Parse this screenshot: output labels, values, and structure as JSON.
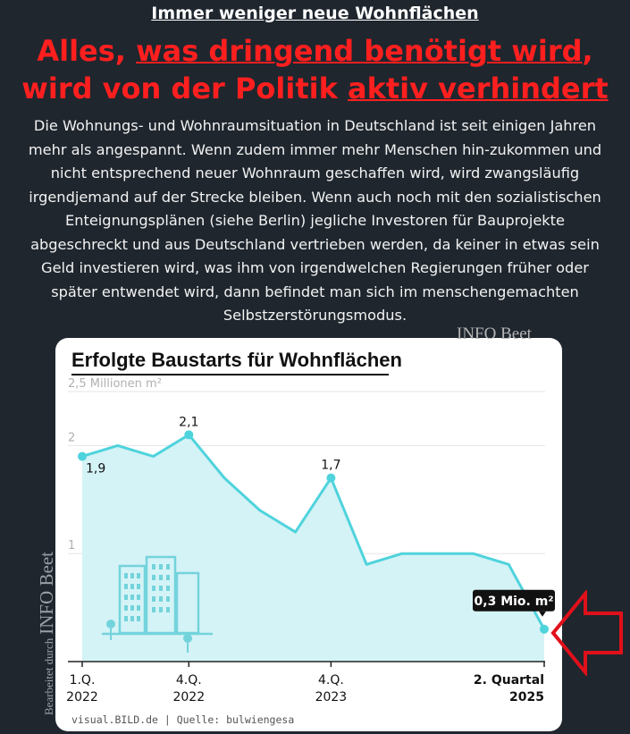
{
  "kicker": "Immer weniger neue Wohnflächen",
  "headline": {
    "line1_parts": [
      "Alles, ",
      "was dringend benötigt wird",
      ","
    ],
    "line2_parts": [
      "wird von der Politik ",
      "aktiv verhindert"
    ]
  },
  "body_text": "Die Wohnungs- und Wohnraumsituation in Deutschland ist seit einigen Jahren mehr als angespannt. Wenn zudem immer mehr Menschen hin-zukommen und nicht entsprechend neuer Wohnraum geschaffen wird, wird zwangsläufig irgendjemand auf der Strecke bleiben. Wenn auch noch mit den sozialistischen Enteignungsplänen (siehe Berlin) jegliche Investoren für Bauprojekte abgeschreckt und aus Deutschland vertrieben werden, da keiner in etwas sein Geld investieren wird, was ihm von irgendwelchen Regierungen früher oder später entwendet wird, dann befindet man sich im menschengemachten Selbstzerstörungsmodus.",
  "watermark_top": "INFO Beet",
  "watermark_side": {
    "small": "Bearbeitet durch",
    "big": "INFO Beet"
  },
  "colors": {
    "background": "#1f262e",
    "headline": "#ff1f1f",
    "line": "#4fd3dc",
    "area": "#d4f3f6",
    "arrow": "#e0101a"
  },
  "chart_data": {
    "type": "area",
    "title": "Erfolgte Baustarts für Wohnflächen",
    "unit_label": "Millionen m²",
    "y_ticks": [
      {
        "value": 2.5,
        "label": "2,5"
      },
      {
        "value": 2,
        "label": "2"
      },
      {
        "value": 1,
        "label": "1"
      }
    ],
    "ylim": [
      0,
      2.5
    ],
    "x_ticks": [
      {
        "index": 0,
        "line1": "1.Q.",
        "line2": "2022",
        "bold": false
      },
      {
        "index": 3,
        "line1": "4.Q.",
        "line2": "2022",
        "bold": false
      },
      {
        "index": 7,
        "line1": "4.Q.",
        "line2": "2023",
        "bold": false
      },
      {
        "index": 13,
        "line1": "2. Quartal",
        "line2": "2025",
        "bold": true
      }
    ],
    "series": [
      {
        "values": [
          1.9,
          2.0,
          1.9,
          2.1,
          1.7,
          1.4,
          1.2,
          1.7,
          0.9,
          1.0,
          1.0,
          1.0,
          0.9,
          0.3
        ]
      }
    ],
    "data_labels": [
      {
        "index": 0,
        "label": "1,9"
      },
      {
        "index": 3,
        "label": "2,1"
      },
      {
        "index": 7,
        "label": "1,7"
      },
      {
        "index": 13,
        "label": "0,3 Mio. m²"
      }
    ],
    "grid": true,
    "source": "visual.BILD.de | Quelle: bulwiengesa"
  }
}
